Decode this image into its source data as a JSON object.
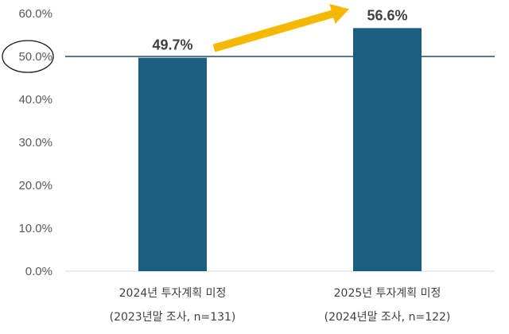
{
  "chart_data": {
    "type": "bar",
    "categories": [
      [
        "2024년 투자계획 미정",
        "(2023년말 조사, n=131)"
      ],
      [
        "2025년 투자계획 미정",
        "(2024년말 조사, n=122)"
      ]
    ],
    "values": [
      49.7,
      56.6
    ],
    "data_labels": [
      "49.7%",
      "56.6%"
    ],
    "y_ticks": [
      0,
      10,
      20,
      30,
      40,
      50,
      60
    ],
    "y_tick_labels": [
      "0.0%",
      "10.0%",
      "20.0%",
      "30.0%",
      "40.0%",
      "50.0%",
      "60.0%"
    ],
    "ylim": [
      0,
      60
    ],
    "reference_line": 50,
    "highlighted_tick": "50.0%",
    "annotation": "arrow from first bar label to second bar label (increase)",
    "grid": false,
    "bar_color": "#1b5e80",
    "line_color": "#1f4e5f",
    "arrow_color": "#f5b800",
    "title": "",
    "xlabel": "",
    "ylabel": ""
  }
}
